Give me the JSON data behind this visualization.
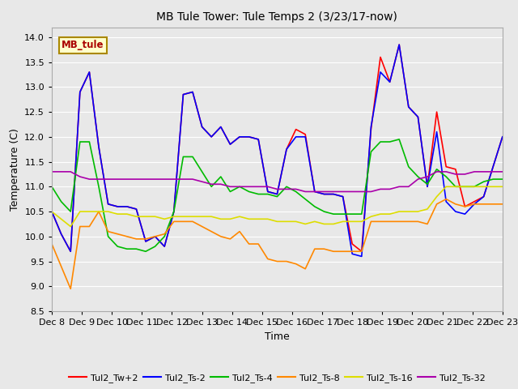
{
  "title": "MB Tule Tower: Tule Temps 2 (3/23/17-now)",
  "xlabel": "Time",
  "ylabel": "Temperature (C)",
  "ylim": [
    8.5,
    14.2
  ],
  "background_color": "#e8e8e8",
  "series_colors": {
    "Tul2_Tw+2": "#ff0000",
    "Tul2_Ts-2": "#0000ff",
    "Tul2_Ts-4": "#00bb00",
    "Tul2_Ts-8": "#ff8800",
    "Tul2_Ts-16": "#dddd00",
    "Tul2_Ts-32": "#aa00aa"
  },
  "xtick_labels": [
    "Dec 8",
    "Dec 9",
    "Dec 10",
    "Dec 11",
    "Dec 12",
    "Dec 13",
    "Dec 14",
    "Dec 15",
    "Dec 16",
    "Dec 17",
    "Dec 18",
    "Dec 19",
    "Dec 20",
    "Dec 21",
    "Dec 22",
    "Dec 23"
  ],
  "tw2": [
    10.5,
    10.05,
    9.7,
    12.9,
    13.3,
    11.8,
    10.65,
    10.6,
    10.6,
    10.55,
    9.9,
    10.0,
    9.8,
    10.5,
    12.85,
    12.9,
    12.2,
    12.0,
    12.2,
    11.85,
    12.0,
    12.0,
    11.95,
    10.9,
    10.85,
    11.75,
    12.15,
    12.05,
    10.9,
    10.85,
    10.85,
    10.8,
    9.85,
    9.7,
    12.15,
    13.6,
    13.1,
    13.85,
    12.6,
    12.4,
    11.0,
    12.5,
    11.4,
    11.35,
    10.6,
    10.7,
    10.8,
    11.4,
    12.0
  ],
  "ts2": [
    10.5,
    10.05,
    9.7,
    12.9,
    13.3,
    11.8,
    10.65,
    10.6,
    10.6,
    10.55,
    9.9,
    10.0,
    9.8,
    10.5,
    12.85,
    12.9,
    12.2,
    12.0,
    12.2,
    11.85,
    12.0,
    12.0,
    11.95,
    10.9,
    10.85,
    11.75,
    12.0,
    12.0,
    10.9,
    10.85,
    10.85,
    10.8,
    9.65,
    9.6,
    12.2,
    13.3,
    13.1,
    13.85,
    12.6,
    12.4,
    11.0,
    12.1,
    10.7,
    10.5,
    10.45,
    10.65,
    10.8,
    11.4,
    12.0
  ],
  "ts4": [
    11.0,
    10.7,
    10.5,
    11.9,
    11.9,
    11.0,
    10.0,
    9.8,
    9.75,
    9.75,
    9.7,
    9.8,
    10.0,
    10.5,
    11.6,
    11.6,
    11.3,
    11.0,
    11.2,
    10.9,
    11.0,
    10.9,
    10.85,
    10.85,
    10.8,
    11.0,
    10.9,
    10.75,
    10.6,
    10.5,
    10.45,
    10.45,
    10.45,
    10.45,
    11.7,
    11.9,
    11.9,
    11.95,
    11.4,
    11.2,
    11.05,
    11.35,
    11.2,
    11.0,
    11.0,
    11.0,
    11.1,
    11.15,
    11.15
  ],
  "ts8": [
    9.85,
    9.4,
    8.95,
    10.2,
    10.2,
    10.5,
    10.1,
    10.05,
    10.0,
    9.95,
    9.95,
    10.0,
    10.05,
    10.3,
    10.3,
    10.3,
    10.2,
    10.1,
    10.0,
    9.95,
    10.1,
    9.85,
    9.85,
    9.55,
    9.5,
    9.5,
    9.45,
    9.35,
    9.75,
    9.75,
    9.7,
    9.7,
    9.7,
    9.7,
    10.3,
    10.3,
    10.3,
    10.3,
    10.3,
    10.3,
    10.25,
    10.65,
    10.75,
    10.65,
    10.6,
    10.65,
    10.65,
    10.65,
    10.65
  ],
  "ts16": [
    10.5,
    10.35,
    10.2,
    10.5,
    10.5,
    10.5,
    10.5,
    10.45,
    10.45,
    10.4,
    10.4,
    10.4,
    10.35,
    10.4,
    10.4,
    10.4,
    10.4,
    10.4,
    10.35,
    10.35,
    10.4,
    10.35,
    10.35,
    10.35,
    10.3,
    10.3,
    10.3,
    10.25,
    10.3,
    10.25,
    10.25,
    10.3,
    10.3,
    10.3,
    10.4,
    10.45,
    10.45,
    10.5,
    10.5,
    10.5,
    10.55,
    10.8,
    11.0,
    11.0,
    11.0,
    11.0,
    11.0,
    11.0,
    11.0
  ],
  "ts32": [
    11.3,
    11.3,
    11.3,
    11.2,
    11.15,
    11.15,
    11.15,
    11.15,
    11.15,
    11.15,
    11.15,
    11.15,
    11.15,
    11.15,
    11.15,
    11.15,
    11.1,
    11.05,
    11.05,
    11.0,
    11.0,
    11.0,
    11.0,
    11.0,
    10.95,
    10.95,
    10.95,
    10.9,
    10.9,
    10.9,
    10.9,
    10.9,
    10.9,
    10.9,
    10.9,
    10.95,
    10.95,
    11.0,
    11.0,
    11.15,
    11.2,
    11.3,
    11.3,
    11.25,
    11.25,
    11.3,
    11.3,
    11.3,
    11.3
  ]
}
